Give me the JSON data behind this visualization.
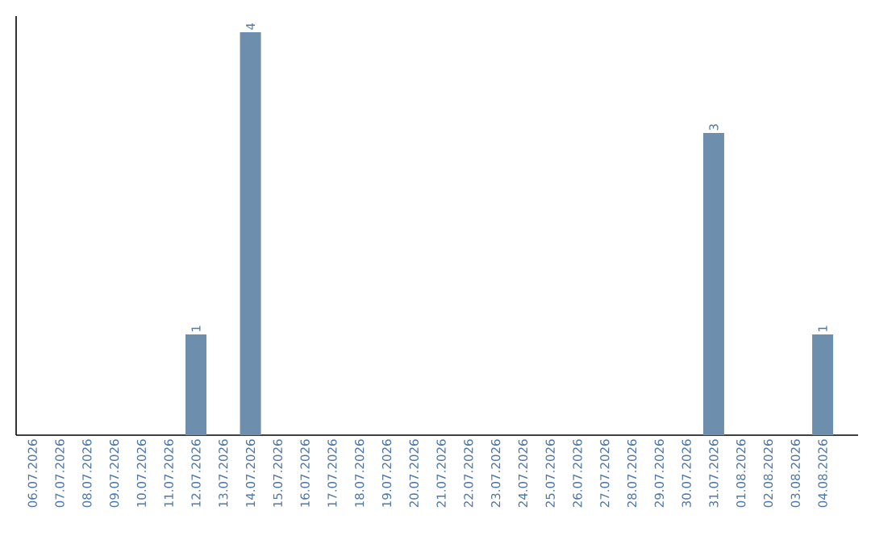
{
  "chart_data": {
    "type": "bar",
    "categories": [
      "06.07.2026",
      "07.07.2026",
      "08.07.2026",
      "09.07.2026",
      "10.07.2026",
      "11.07.2026",
      "12.07.2026",
      "13.07.2026",
      "14.07.2026",
      "15.07.2026",
      "16.07.2026",
      "17.07.2026",
      "18.07.2026",
      "19.07.2026",
      "20.07.2026",
      "21.07.2026",
      "22.07.2026",
      "23.07.2026",
      "24.07.2026",
      "25.07.2026",
      "26.07.2026",
      "27.07.2026",
      "28.07.2026",
      "29.07.2026",
      "30.07.2026",
      "31.07.2026",
      "01.08.2026",
      "02.08.2026",
      "03.08.2026",
      "04.08.2026"
    ],
    "values": [
      0,
      0,
      0,
      0,
      0,
      0,
      1,
      0,
      4,
      0,
      0,
      0,
      0,
      0,
      0,
      0,
      0,
      0,
      0,
      0,
      0,
      0,
      0,
      0,
      0,
      3,
      0,
      0,
      0,
      1
    ],
    "value_labels": [
      null,
      null,
      null,
      null,
      null,
      null,
      "1",
      null,
      "4",
      null,
      null,
      null,
      null,
      null,
      null,
      null,
      null,
      null,
      null,
      null,
      null,
      null,
      null,
      null,
      null,
      "3",
      null,
      null,
      null,
      "1"
    ],
    "color": "#6d8fad"
  }
}
